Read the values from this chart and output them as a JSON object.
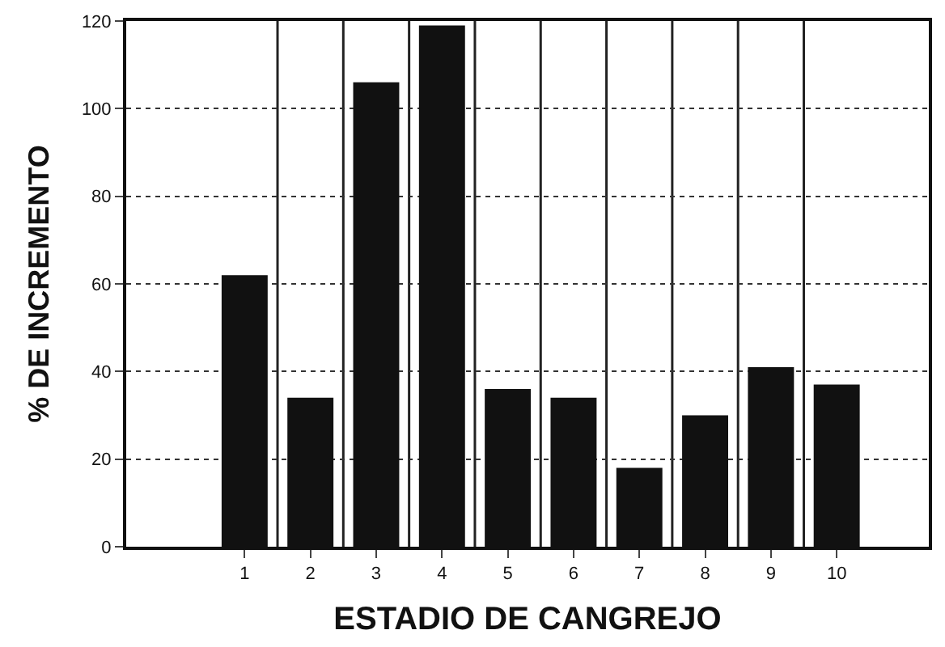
{
  "chart_data": {
    "type": "bar",
    "xlabel": "ESTADIO DE CANGREJO",
    "ylabel": "% DE INCREMENTO",
    "categories": [
      "1",
      "2",
      "3",
      "4",
      "5",
      "6",
      "7",
      "8",
      "9",
      "10"
    ],
    "values": [
      62,
      34,
      106,
      119,
      36,
      34,
      18,
      30,
      41,
      37
    ],
    "color": "#111111",
    "ylim": [
      0,
      120
    ],
    "yticks": [
      0,
      20,
      40,
      60,
      80,
      100,
      120
    ],
    "grid": true
  }
}
